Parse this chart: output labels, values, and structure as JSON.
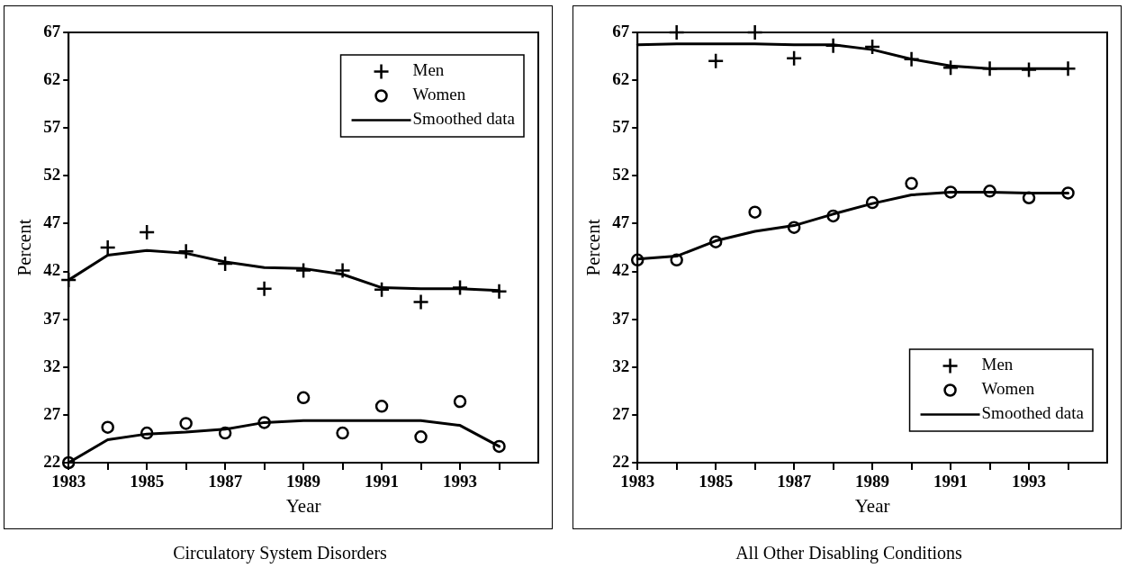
{
  "chart_data": [
    {
      "type": "scatter",
      "title": "Circulatory System Disorders",
      "xlabel": "Year",
      "ylabel": "Percent",
      "x": [
        1983,
        1984,
        1985,
        1986,
        1987,
        1988,
        1989,
        1990,
        1991,
        1992,
        1993,
        1994
      ],
      "series": [
        {
          "name": "Men",
          "marker": "cross",
          "color": "#000000",
          "values": [
            41.1,
            44.5,
            46.1,
            44.1,
            42.8,
            40.2,
            42.1,
            42.1,
            40.1,
            38.8,
            40.3,
            39.9
          ]
        },
        {
          "name": "Women",
          "marker": "circle",
          "color": "#000000",
          "values": [
            22.0,
            25.7,
            25.1,
            26.1,
            25.1,
            26.2,
            28.8,
            25.1,
            27.9,
            24.7,
            28.4,
            23.7
          ]
        },
        {
          "name": "Smoothed data",
          "type": "line",
          "marker": "none",
          "color": "#000000",
          "values": [
            41.1,
            43.7,
            44.2,
            43.9,
            43.0,
            42.4,
            42.3,
            41.7,
            40.3,
            40.2,
            40.2,
            40.0
          ]
        },
        {
          "type": "line",
          "marker": "none",
          "color": "#000000",
          "values": [
            22.0,
            24.4,
            25.0,
            25.2,
            25.5,
            26.2,
            26.4,
            26.4,
            26.4,
            26.4,
            25.9,
            23.7
          ]
        }
      ],
      "xlim": [
        1983,
        1995
      ],
      "xticks": [
        1983,
        {
          "value": 1984,
          "label": null
        },
        1985,
        {
          "value": 1986,
          "label": null
        },
        1987,
        {
          "value": 1988,
          "label": null
        },
        1989,
        {
          "value": 1990,
          "label": null
        },
        1991,
        {
          "value": 1992,
          "label": null
        },
        1993,
        {
          "value": 1994,
          "label": null
        }
      ],
      "ylim": [
        22,
        67
      ],
      "yticks": [
        22,
        27,
        32,
        37,
        42,
        47,
        52,
        57,
        62,
        67
      ],
      "grid": false,
      "legend": "top right"
    },
    {
      "type": "scatter",
      "title": "All Other Disabling Conditions",
      "xlabel": "Year",
      "ylabel": "Percent",
      "x": [
        1983,
        1984,
        1985,
        1986,
        1987,
        1988,
        1989,
        1990,
        1991,
        1992,
        1993,
        1994
      ],
      "series": [
        {
          "name": "Men",
          "marker": "cross",
          "color": "#000000",
          "values": [
            null,
            67.0,
            64.0,
            67.0,
            64.3,
            65.6,
            65.5,
            64.2,
            63.3,
            63.2,
            63.1,
            63.2
          ]
        },
        {
          "name": "Women",
          "marker": "circle",
          "color": "#000000",
          "values": [
            43.2,
            43.2,
            45.1,
            48.2,
            46.6,
            47.8,
            49.2,
            51.2,
            50.3,
            50.4,
            49.7,
            50.2
          ]
        },
        {
          "name": "Smoothed data",
          "type": "line",
          "marker": "none",
          "color": "#000000",
          "values": [
            65.7,
            65.8,
            65.8,
            65.8,
            65.7,
            65.7,
            65.2,
            64.2,
            63.5,
            63.2,
            63.2,
            63.2
          ]
        },
        {
          "type": "line",
          "marker": "none",
          "color": "#000000",
          "values": [
            43.3,
            43.6,
            45.2,
            46.2,
            46.8,
            48.0,
            49.1,
            50.0,
            50.3,
            50.3,
            50.2,
            50.2
          ]
        }
      ],
      "xlim": [
        1983,
        1995
      ],
      "xticks": [
        1983,
        {
          "value": 1984,
          "label": null
        },
        1985,
        {
          "value": 1986,
          "label": null
        },
        1987,
        {
          "value": 1988,
          "label": null
        },
        1989,
        {
          "value": 1990,
          "label": null
        },
        1991,
        {
          "value": 1992,
          "label": null
        },
        1993,
        {
          "value": 1994,
          "label": null
        }
      ],
      "ylim": [
        22,
        67
      ],
      "yticks": [
        22,
        27,
        32,
        37,
        42,
        47,
        52,
        57,
        62,
        67
      ],
      "grid": false,
      "legend": "bottom right"
    }
  ]
}
